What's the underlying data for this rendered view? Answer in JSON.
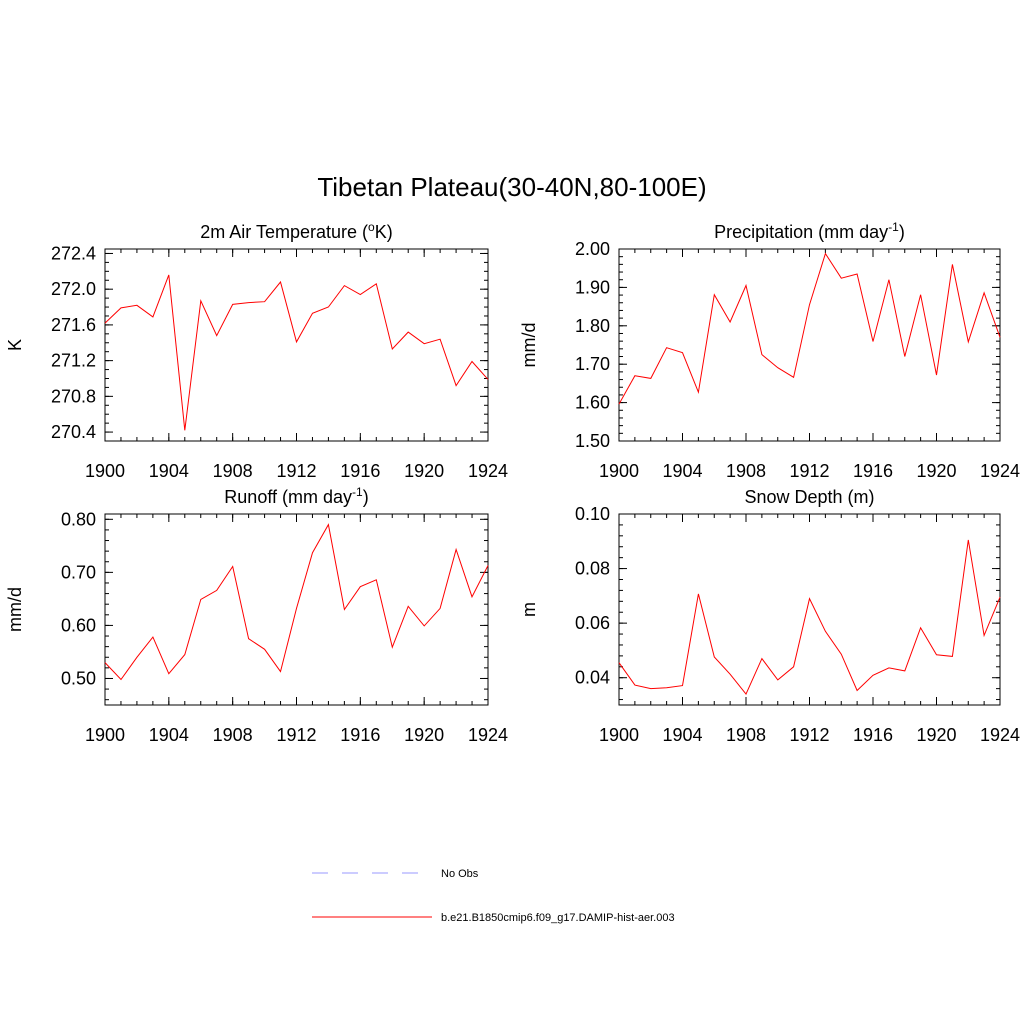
{
  "figure": {
    "title": "Tibetan Plateau(30-40N,80-100E)"
  },
  "chart_data": [
    {
      "type": "line",
      "title": "2m Air Temperature (",
      "title_sup": "o",
      "title_suffix": "K)",
      "ylabel": "K",
      "xlabel": "",
      "xlim": [
        1900,
        1924
      ],
      "ylim": [
        270.3,
        272.45
      ],
      "xticks": [
        1900,
        1904,
        1908,
        1912,
        1916,
        1920,
        1924
      ],
      "xtick_labels": [
        "1900",
        "1904",
        "1908",
        "1912",
        "1916",
        "1920",
        "1924"
      ],
      "yticks": [
        270.4,
        270.8,
        271.2,
        271.6,
        272.0,
        272.4
      ],
      "ytick_labels": [
        "270.4",
        "270.8",
        "271.2",
        "271.6",
        "272.0",
        "272.4"
      ],
      "minor_x_step": 1,
      "minor_y_step": 0.1,
      "grid": false,
      "x": [
        1900,
        1901,
        1902,
        1903,
        1904,
        1905,
        1906,
        1907,
        1908,
        1909,
        1910,
        1911,
        1912,
        1913,
        1914,
        1915,
        1916,
        1917,
        1918,
        1919,
        1920,
        1921,
        1922,
        1923,
        1924
      ],
      "series": [
        {
          "color": "#ff0000",
          "values": [
            271.62,
            271.79,
            271.82,
            271.69,
            272.16,
            270.42,
            271.87,
            271.48,
            271.83,
            271.85,
            271.86,
            272.08,
            271.41,
            271.73,
            271.8,
            272.04,
            271.94,
            272.06,
            271.33,
            271.52,
            271.39,
            271.44,
            270.92,
            271.19,
            270.99
          ]
        }
      ]
    },
    {
      "type": "line",
      "title": "Precipitation (mm day",
      "title_sup": "-1",
      "title_suffix": ")",
      "ylabel": "mm/d",
      "xlabel": "",
      "xlim": [
        1900,
        1924
      ],
      "ylim": [
        1.5,
        2.0
      ],
      "xticks": [
        1900,
        1904,
        1908,
        1912,
        1916,
        1920,
        1924
      ],
      "xtick_labels": [
        "1900",
        "1904",
        "1908",
        "1912",
        "1916",
        "1920",
        "1924"
      ],
      "yticks": [
        1.5,
        1.6,
        1.7,
        1.8,
        1.9,
        2.0
      ],
      "ytick_labels": [
        "1.50",
        "1.60",
        "1.70",
        "1.80",
        "1.90",
        "2.00"
      ],
      "minor_x_step": 1,
      "minor_y_step": 0.02,
      "grid": false,
      "x": [
        1900,
        1901,
        1902,
        1903,
        1904,
        1905,
        1906,
        1907,
        1908,
        1909,
        1910,
        1911,
        1912,
        1913,
        1914,
        1915,
        1916,
        1917,
        1918,
        1919,
        1920,
        1921,
        1922,
        1923,
        1924
      ],
      "series": [
        {
          "color": "#ff0000",
          "values": [
            1.596,
            1.67,
            1.663,
            1.743,
            1.73,
            1.627,
            1.881,
            1.81,
            1.905,
            1.725,
            1.691,
            1.666,
            1.855,
            1.988,
            1.924,
            1.935,
            1.759,
            1.92,
            1.72,
            1.881,
            1.672,
            1.96,
            1.758,
            1.886,
            1.77
          ]
        }
      ]
    },
    {
      "type": "line",
      "title": "Runoff (mm day",
      "title_sup": "-1",
      "title_suffix": ")",
      "ylabel": "mm/d",
      "xlabel": "",
      "xlim": [
        1900,
        1924
      ],
      "ylim": [
        0.45,
        0.81
      ],
      "xticks": [
        1900,
        1904,
        1908,
        1912,
        1916,
        1920,
        1924
      ],
      "xtick_labels": [
        "1900",
        "1904",
        "1908",
        "1912",
        "1916",
        "1920",
        "1924"
      ],
      "yticks": [
        0.5,
        0.6,
        0.7,
        0.8
      ],
      "ytick_labels": [
        "0.50",
        "0.60",
        "0.70",
        "0.80"
      ],
      "minor_x_step": 1,
      "minor_y_step": 0.02,
      "grid": false,
      "x": [
        1900,
        1901,
        1902,
        1903,
        1904,
        1905,
        1906,
        1907,
        1908,
        1909,
        1910,
        1911,
        1912,
        1913,
        1914,
        1915,
        1916,
        1917,
        1918,
        1919,
        1920,
        1921,
        1922,
        1923,
        1924
      ],
      "series": [
        {
          "color": "#ff0000",
          "values": [
            0.53,
            0.498,
            0.54,
            0.578,
            0.509,
            0.545,
            0.649,
            0.666,
            0.711,
            0.575,
            0.555,
            0.513,
            0.632,
            0.737,
            0.79,
            0.63,
            0.673,
            0.686,
            0.559,
            0.636,
            0.599,
            0.632,
            0.743,
            0.654,
            0.713
          ]
        }
      ]
    },
    {
      "type": "line",
      "title": "Snow Depth (m)",
      "title_sup": "",
      "title_suffix": "",
      "ylabel": "m",
      "xlabel": "",
      "xlim": [
        1900,
        1924
      ],
      "ylim": [
        0.03,
        0.1
      ],
      "xticks": [
        1900,
        1904,
        1908,
        1912,
        1916,
        1920,
        1924
      ],
      "xtick_labels": [
        "1900",
        "1904",
        "1908",
        "1912",
        "1916",
        "1920",
        "1924"
      ],
      "yticks": [
        0.04,
        0.06,
        0.08,
        0.1
      ],
      "ytick_labels": [
        "0.04",
        "0.06",
        "0.08",
        "0.10"
      ],
      "minor_x_step": 1,
      "minor_y_step": 0.004,
      "grid": false,
      "x": [
        1900,
        1901,
        1902,
        1903,
        1904,
        1905,
        1906,
        1907,
        1908,
        1909,
        1910,
        1911,
        1912,
        1913,
        1914,
        1915,
        1916,
        1917,
        1918,
        1919,
        1920,
        1921,
        1922,
        1923,
        1924
      ],
      "series": [
        {
          "color": "#ff0000",
          "values": [
            0.0455,
            0.0373,
            0.036,
            0.0363,
            0.0371,
            0.0707,
            0.0476,
            0.0413,
            0.034,
            0.047,
            0.0392,
            0.044,
            0.069,
            0.057,
            0.0486,
            0.0353,
            0.0409,
            0.0436,
            0.0425,
            0.0583,
            0.0484,
            0.0478,
            0.0905,
            0.0555,
            0.0695
          ]
        }
      ]
    }
  ],
  "legend": {
    "placement": "bottom-center",
    "entries": [
      {
        "label": "No Obs",
        "color": "#9999ff",
        "style": "dashed"
      },
      {
        "label": "b.e21.B1850cmip6.f09_g17.DAMIP-hist-aer.003",
        "color": "#ff0000",
        "style": "solid"
      }
    ]
  }
}
